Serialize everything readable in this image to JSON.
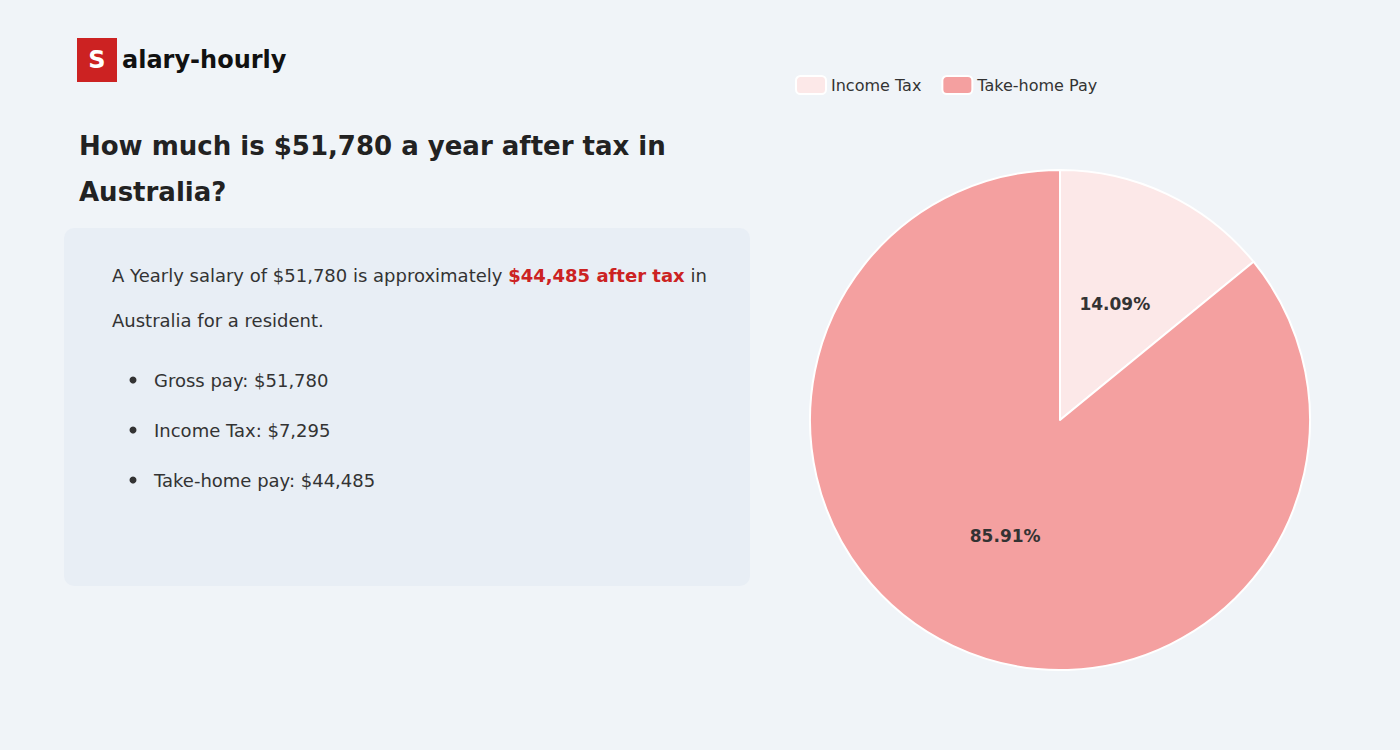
{
  "chart_data": {
    "type": "pie",
    "title": "How much is $51,780 a year after tax in\nAustralia?",
    "annotations": [
      [
        {
          "text": "S",
          "color": "#cc2222"
        },
        {
          "text": "alary-hourly"
        }
      ],
      [
        {
          "text": "A Yearly salary of $51,780 is approximately "
        },
        {
          "text": "$44,485 after tax",
          "color": "#cc2222"
        },
        {
          "text": " in"
        }
      ],
      [
        {
          "text": "Australia for a resident."
        }
      ],
      [
        {
          "text": "Gross pay: $51,780",
          "marker": "bullet"
        }
      ],
      [
        {
          "text": "Income Tax: $7,295",
          "marker": "bullet"
        }
      ],
      [
        {
          "text": "Take-home pay: $44,485",
          "marker": "bullet"
        }
      ]
    ],
    "categories": [
      "Income Tax",
      "Take-home Pay"
    ],
    "values": [
      14.09,
      85.91
    ],
    "value_labels": [
      "14.09%",
      "85.91%"
    ],
    "colors": [
      "#fce8e8",
      "#f4a0a0"
    ],
    "data_labels": true,
    "legend": "top"
  }
}
